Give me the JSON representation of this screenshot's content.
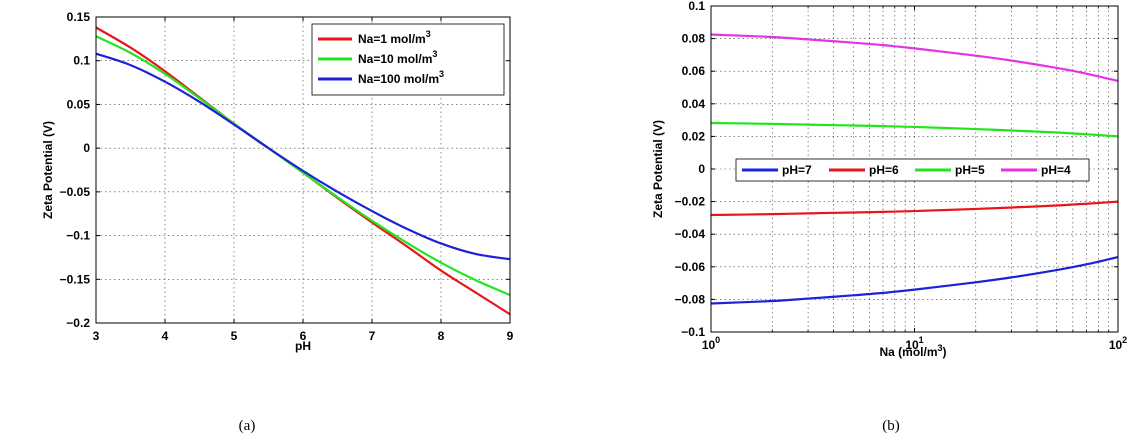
{
  "chart_data": [
    {
      "type": "line",
      "caption": "(a)",
      "xlabel": "pH",
      "ylabel": "Zeta Potential (V)",
      "xlim": [
        3,
        9
      ],
      "ylim": [
        -0.2,
        0.15
      ],
      "xscale": "linear",
      "xticks": [
        3,
        4,
        5,
        6,
        7,
        8,
        9
      ],
      "xtick_labels": [
        "3",
        "4",
        "5",
        "6",
        "7",
        "8",
        "9"
      ],
      "yticks": [
        -0.2,
        -0.15,
        -0.1,
        -0.05,
        0,
        0.05,
        0.1,
        0.15
      ],
      "ytick_labels": [
        "−0.2",
        "−0.15",
        "−0.1",
        "−0.05",
        "0",
        "0.05",
        "0.1",
        "0.15"
      ],
      "grid": true,
      "legend_position": "top-right",
      "series": [
        {
          "name": "Na=1 mol/m3",
          "legend_label": {
            "main": "Na=1 mol/m",
            "sup": "3"
          },
          "color": "#e8161b",
          "x": [
            3,
            3.5,
            4,
            4.5,
            5,
            5.5,
            6,
            6.5,
            7,
            7.5,
            8,
            8.5,
            9
          ],
          "y": [
            0.138,
            0.115,
            0.088,
            0.058,
            0.028,
            0.0,
            -0.028,
            -0.057,
            -0.085,
            -0.112,
            -0.14,
            -0.165,
            -0.19
          ]
        },
        {
          "name": "Na=10 mol/m3",
          "legend_label": {
            "main": "Na=10 mol/m",
            "sup": "3"
          },
          "color": "#22e51e",
          "x": [
            3,
            3.5,
            4,
            4.5,
            5,
            5.5,
            6,
            6.5,
            7,
            7.5,
            8,
            8.5,
            9
          ],
          "y": [
            0.128,
            0.109,
            0.085,
            0.057,
            0.028,
            0.0,
            -0.028,
            -0.056,
            -0.083,
            -0.108,
            -0.131,
            -0.151,
            -0.168
          ]
        },
        {
          "name": "Na=100 mol/m3",
          "legend_label": {
            "main": "Na=100 mol/m",
            "sup": "3"
          },
          "color": "#1b22d8",
          "x": [
            3,
            3.5,
            4,
            4.5,
            5,
            5.5,
            6,
            6.5,
            7,
            7.5,
            8,
            8.5,
            9
          ],
          "y": [
            0.108,
            0.095,
            0.076,
            0.053,
            0.027,
            0.0,
            -0.026,
            -0.05,
            -0.072,
            -0.092,
            -0.109,
            -0.121,
            -0.127
          ]
        }
      ]
    },
    {
      "type": "line",
      "caption": "(b)",
      "xlabel": "Na (mol/m3)",
      "xlabel_parts": {
        "main": "Na (mol/m",
        "sup": "3",
        "tail": ")"
      },
      "ylabel": "Zeta Potential (V)",
      "xlim": [
        1,
        100
      ],
      "ylim": [
        -0.1,
        0.1
      ],
      "xscale": "log",
      "xticks": [
        1,
        10,
        100
      ],
      "xtick_labels": [
        {
          "base": "10",
          "exp": "0"
        },
        {
          "base": "10",
          "exp": "1"
        },
        {
          "base": "10",
          "exp": "2"
        }
      ],
      "yticks": [
        -0.1,
        -0.08,
        -0.06,
        -0.04,
        -0.02,
        0,
        0.02,
        0.04,
        0.06,
        0.08,
        0.1
      ],
      "ytick_labels": [
        "−0.1",
        "−0.08",
        "−0.06",
        "−0.04",
        "−0.02",
        "0",
        "0.02",
        "0.04",
        "0.06",
        "0.08",
        "0.1"
      ],
      "grid": true,
      "minor_grid": true,
      "legend_position": "center, single row",
      "series": [
        {
          "name": "pH=7",
          "color": "#1b22d8",
          "x": [
            1,
            2,
            3,
            5,
            7,
            10,
            20,
            30,
            50,
            70,
            100
          ],
          "y": [
            -0.0825,
            -0.081,
            -0.0795,
            -0.0775,
            -0.076,
            -0.074,
            -0.0695,
            -0.0665,
            -0.062,
            -0.0585,
            -0.054
          ]
        },
        {
          "name": "pH=6",
          "color": "#e8161b",
          "x": [
            1,
            2,
            3,
            5,
            7,
            10,
            20,
            30,
            50,
            70,
            100
          ],
          "y": [
            -0.0282,
            -0.0277,
            -0.0272,
            -0.0267,
            -0.0263,
            -0.0258,
            -0.0245,
            -0.0236,
            -0.0224,
            -0.0213,
            -0.02
          ]
        },
        {
          "name": "pH=5",
          "color": "#22e51e",
          "x": [
            1,
            2,
            3,
            5,
            7,
            10,
            20,
            30,
            50,
            70,
            100
          ],
          "y": [
            0.0282,
            0.0277,
            0.0272,
            0.0267,
            0.0263,
            0.0258,
            0.0245,
            0.0236,
            0.0224,
            0.0213,
            0.02
          ]
        },
        {
          "name": "pH=4",
          "color": "#e632e2",
          "x": [
            1,
            2,
            3,
            5,
            7,
            10,
            20,
            30,
            50,
            70,
            100
          ],
          "y": [
            0.0825,
            0.081,
            0.0795,
            0.0775,
            0.076,
            0.074,
            0.0695,
            0.0665,
            0.062,
            0.0585,
            0.054
          ]
        }
      ]
    }
  ]
}
